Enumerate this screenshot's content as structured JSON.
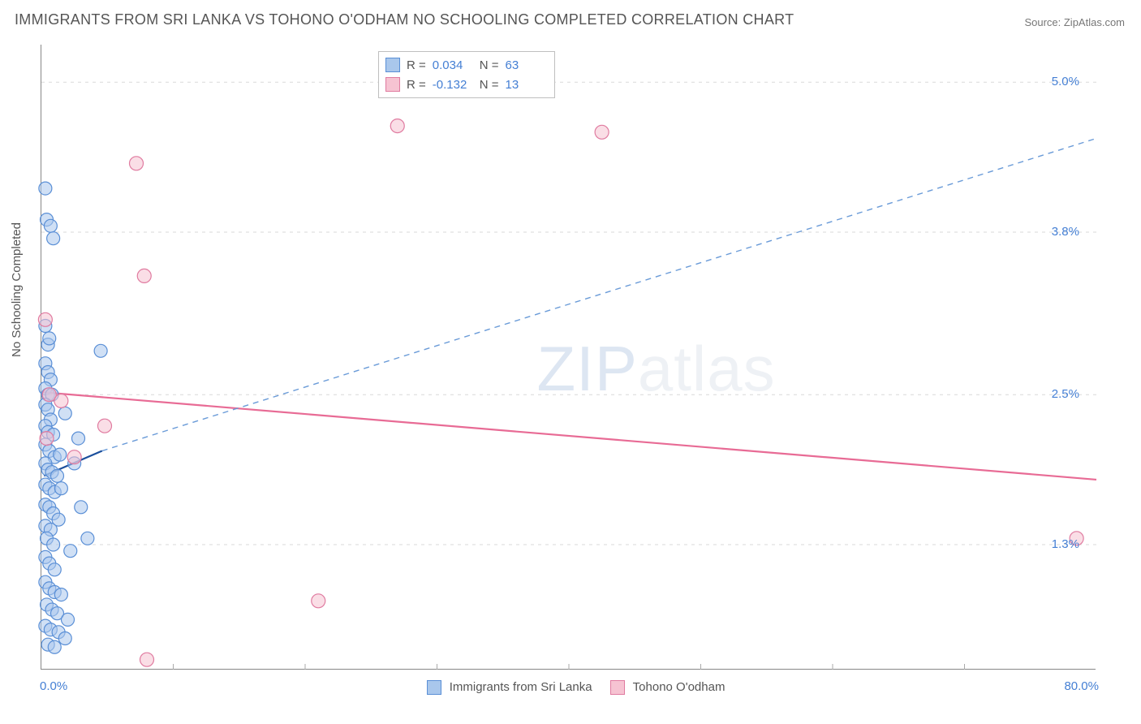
{
  "title": "IMMIGRANTS FROM SRI LANKA VS TOHONO O'ODHAM NO SCHOOLING COMPLETED CORRELATION CHART",
  "source": "Source: ZipAtlas.com",
  "y_axis_title": "No Schooling Completed",
  "watermark": {
    "zip": "ZIP",
    "atlas": "atlas"
  },
  "chart": {
    "type": "scatter-correlation",
    "background_color": "#ffffff",
    "grid_color": "#d9d9d9",
    "axis_color": "#888888",
    "label_color": "#555555",
    "tick_color": "#447fd4",
    "xlim": [
      0.0,
      80.0
    ],
    "ylim": [
      0.3,
      5.3
    ],
    "y_ticks": [
      1.3,
      2.5,
      3.8,
      5.0
    ],
    "y_tick_labels": [
      "1.3%",
      "2.5%",
      "3.8%",
      "5.0%"
    ],
    "x_tick_labels": {
      "min": "0.0%",
      "max": "80.0%"
    },
    "x_grid_positions": [
      10,
      20,
      30,
      40,
      50,
      60,
      70
    ],
    "series": {
      "blue": {
        "name": "Immigrants from Sri Lanka",
        "fill": "#a9c7ec",
        "stroke": "#5a8fd6",
        "fill_opacity": 0.55,
        "marker_r": 8,
        "R": "0.034",
        "N": "63",
        "trend_solid": {
          "x1": 0.2,
          "y1": 1.85,
          "x2": 4.6,
          "y2": 2.05,
          "color": "#1b4f9c",
          "width": 2.2
        },
        "trend_dashed": {
          "x1": 4.6,
          "y1": 2.05,
          "x2": 80.0,
          "y2": 4.55,
          "color": "#6a9bd8",
          "width": 1.4,
          "dash": "7,6"
        },
        "points": [
          [
            0.3,
            4.15
          ],
          [
            0.4,
            3.9
          ],
          [
            0.7,
            3.85
          ],
          [
            0.9,
            3.75
          ],
          [
            0.3,
            3.05
          ],
          [
            0.5,
            2.9
          ],
          [
            0.3,
            2.75
          ],
          [
            0.5,
            2.68
          ],
          [
            0.7,
            2.62
          ],
          [
            0.3,
            2.55
          ],
          [
            0.5,
            2.5
          ],
          [
            0.8,
            2.5
          ],
          [
            0.3,
            2.42
          ],
          [
            0.5,
            2.38
          ],
          [
            0.7,
            2.3
          ],
          [
            0.3,
            2.25
          ],
          [
            0.5,
            2.2
          ],
          [
            0.9,
            2.18
          ],
          [
            0.3,
            2.1
          ],
          [
            0.6,
            2.05
          ],
          [
            1.0,
            2.0
          ],
          [
            1.4,
            2.02
          ],
          [
            0.3,
            1.95
          ],
          [
            0.5,
            1.9
          ],
          [
            0.8,
            1.88
          ],
          [
            1.2,
            1.85
          ],
          [
            0.3,
            1.78
          ],
          [
            0.6,
            1.75
          ],
          [
            1.0,
            1.72
          ],
          [
            1.5,
            1.75
          ],
          [
            0.3,
            1.62
          ],
          [
            0.6,
            1.6
          ],
          [
            0.9,
            1.55
          ],
          [
            1.3,
            1.5
          ],
          [
            0.3,
            1.45
          ],
          [
            0.7,
            1.42
          ],
          [
            0.4,
            1.35
          ],
          [
            0.9,
            1.3
          ],
          [
            0.3,
            1.2
          ],
          [
            0.6,
            1.15
          ],
          [
            1.0,
            1.1
          ],
          [
            0.3,
            1.0
          ],
          [
            0.6,
            0.95
          ],
          [
            1.0,
            0.92
          ],
          [
            1.5,
            0.9
          ],
          [
            0.4,
            0.82
          ],
          [
            0.8,
            0.78
          ],
          [
            1.2,
            0.75
          ],
          [
            0.3,
            0.65
          ],
          [
            0.7,
            0.62
          ],
          [
            1.3,
            0.6
          ],
          [
            2.0,
            0.7
          ],
          [
            0.5,
            0.5
          ],
          [
            1.0,
            0.48
          ],
          [
            1.8,
            0.55
          ],
          [
            0.6,
            2.95
          ],
          [
            4.5,
            2.85
          ],
          [
            2.5,
            1.95
          ],
          [
            3.0,
            1.6
          ],
          [
            2.2,
            1.25
          ],
          [
            1.8,
            2.35
          ],
          [
            2.8,
            2.15
          ],
          [
            3.5,
            1.35
          ]
        ]
      },
      "pink": {
        "name": "Tohono O'odham",
        "fill": "#f6c3d2",
        "stroke": "#e07ba0",
        "fill_opacity": 0.55,
        "marker_r": 8.5,
        "R": "-0.132",
        "N": "13",
        "trend_solid": {
          "x1": 0.0,
          "y1": 2.52,
          "x2": 80.0,
          "y2": 1.82,
          "color": "#e86b95",
          "width": 2.2
        },
        "points": [
          [
            0.3,
            3.1
          ],
          [
            0.6,
            2.5
          ],
          [
            1.5,
            2.45
          ],
          [
            2.5,
            2.0
          ],
          [
            4.8,
            2.25
          ],
          [
            7.2,
            4.35
          ],
          [
            7.8,
            3.45
          ],
          [
            8.0,
            0.38
          ],
          [
            21.0,
            0.85
          ],
          [
            27.0,
            4.65
          ],
          [
            42.5,
            4.6
          ],
          [
            78.5,
            1.35
          ],
          [
            0.4,
            2.15
          ]
        ]
      }
    }
  },
  "corr_legend": {
    "rows": [
      {
        "swatch_fill": "#a9c7ec",
        "swatch_stroke": "#5a8fd6",
        "R": "0.034",
        "N": "63"
      },
      {
        "swatch_fill": "#f6c3d2",
        "swatch_stroke": "#e07ba0",
        "R": "-0.132",
        "N": "13"
      }
    ],
    "R_label": "R =",
    "N_label": "N ="
  },
  "bottom_legend": [
    {
      "swatch_fill": "#a9c7ec",
      "swatch_stroke": "#5a8fd6",
      "label": "Immigrants from Sri Lanka"
    },
    {
      "swatch_fill": "#f6c3d2",
      "swatch_stroke": "#e07ba0",
      "label": "Tohono O'odham"
    }
  ]
}
